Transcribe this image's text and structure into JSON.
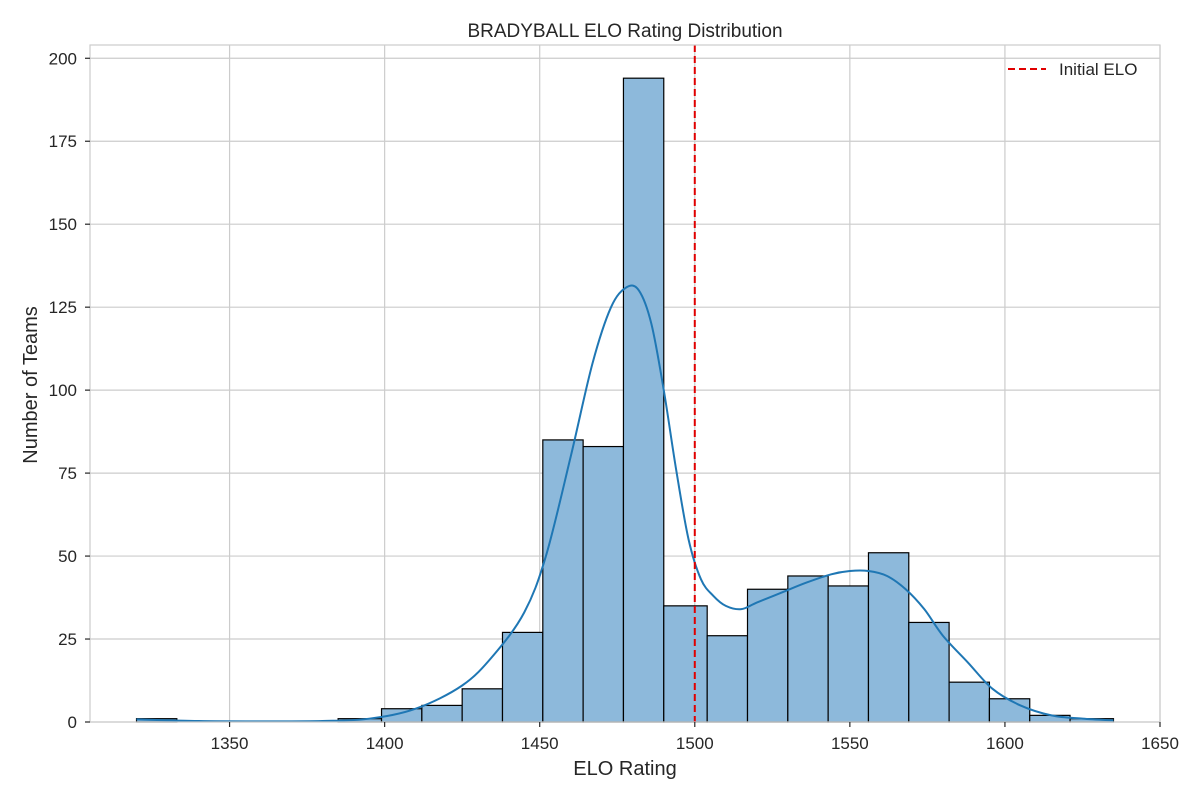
{
  "chart_data": {
    "type": "bar",
    "subtype": "histogram",
    "title": "BRADYBALL ELO Rating Distribution",
    "xlabel": "ELO Rating",
    "ylabel": "Number of Teams",
    "xlim": [
      1305,
      1650
    ],
    "ylim": [
      0,
      204
    ],
    "xticks": [
      1350,
      1400,
      1450,
      1500,
      1550,
      1600,
      1650
    ],
    "yticks": [
      0,
      25,
      50,
      75,
      100,
      125,
      150,
      175,
      200
    ],
    "grid": true,
    "bins": [
      {
        "x0": 1320,
        "x1": 1333,
        "count": 1
      },
      {
        "x0": 1385,
        "x1": 1399,
        "count": 1
      },
      {
        "x0": 1399,
        "x1": 1412,
        "count": 4
      },
      {
        "x0": 1412,
        "x1": 1425,
        "count": 5
      },
      {
        "x0": 1425,
        "x1": 1438,
        "count": 10
      },
      {
        "x0": 1438,
        "x1": 1451,
        "count": 27
      },
      {
        "x0": 1451,
        "x1": 1464,
        "count": 85
      },
      {
        "x0": 1464,
        "x1": 1477,
        "count": 83
      },
      {
        "x0": 1477,
        "x1": 1490,
        "count": 194
      },
      {
        "x0": 1490,
        "x1": 1504,
        "count": 35
      },
      {
        "x0": 1504,
        "x1": 1517,
        "count": 26
      },
      {
        "x0": 1517,
        "x1": 1530,
        "count": 40
      },
      {
        "x0": 1530,
        "x1": 1543,
        "count": 44
      },
      {
        "x0": 1543,
        "x1": 1556,
        "count": 41
      },
      {
        "x0": 1556,
        "x1": 1569,
        "count": 51
      },
      {
        "x0": 1569,
        "x1": 1582,
        "count": 30
      },
      {
        "x0": 1582,
        "x1": 1595,
        "count": 12
      },
      {
        "x0": 1595,
        "x1": 1608,
        "count": 7
      },
      {
        "x0": 1608,
        "x1": 1621,
        "count": 2
      },
      {
        "x0": 1621,
        "x1": 1635,
        "count": 1
      }
    ],
    "kde": {
      "x": [
        1320,
        1340,
        1360,
        1380,
        1395,
        1410,
        1425,
        1435,
        1445,
        1452,
        1460,
        1467,
        1473,
        1478,
        1482,
        1486,
        1490,
        1494,
        1498,
        1502,
        1506,
        1510,
        1515,
        1520,
        1528,
        1536,
        1544,
        1550,
        1556,
        1562,
        1568,
        1574,
        1580,
        1588,
        1596,
        1605,
        1615,
        1625,
        1635
      ],
      "y": [
        0.8,
        0.3,
        0.2,
        0.3,
        1,
        4,
        11,
        20,
        33,
        50,
        80,
        108,
        125,
        131,
        130,
        120,
        100,
        76,
        55,
        43,
        38,
        35,
        34,
        36,
        39,
        42,
        44.5,
        45.5,
        45.5,
        44,
        40,
        34,
        26,
        18,
        10,
        5,
        2,
        1,
        0.5
      ]
    },
    "reference_line": {
      "x": 1500,
      "label": "Initial ELO",
      "color": "#e00000",
      "style": "dashed"
    },
    "legend": {
      "position": "top-right",
      "entries": [
        "Initial ELO"
      ]
    },
    "colors": {
      "bar_fill": "#8db9db",
      "bar_edge": "#000000",
      "kde": "#1f77b4"
    }
  }
}
